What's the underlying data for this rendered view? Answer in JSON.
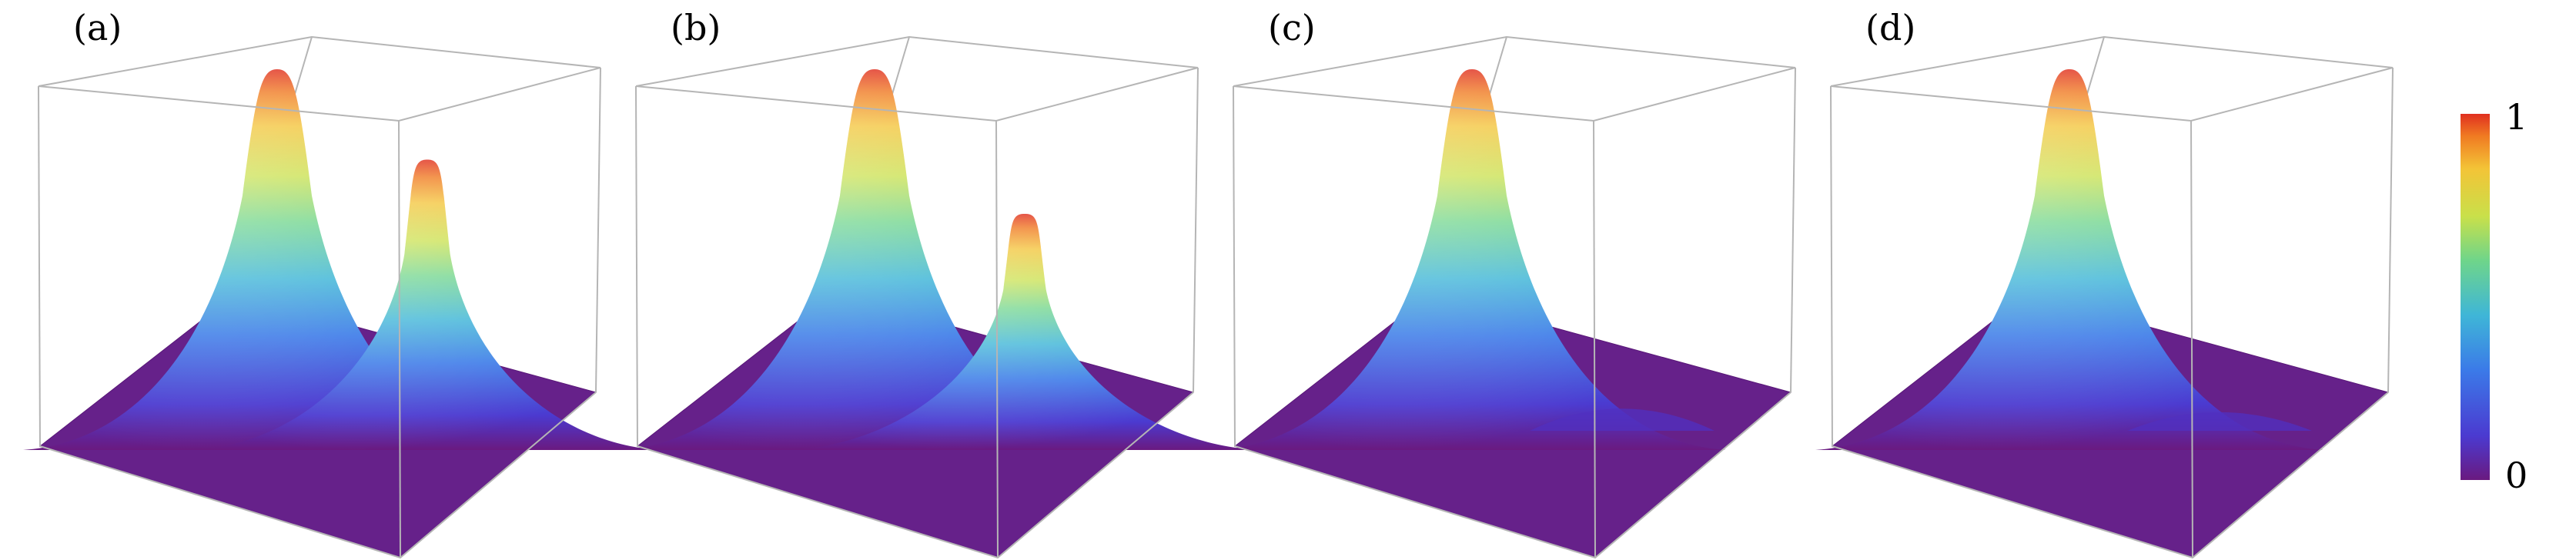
{
  "figure": {
    "colorbar": {
      "tick_max": "1",
      "tick_min": "0",
      "colors": [
        "#e03020",
        "#f07a22",
        "#f3c437",
        "#c9e04a",
        "#6fd58a",
        "#3fb6d7",
        "#3b7ae8",
        "#4b3ad0",
        "#63209e",
        "#6a1a80"
      ]
    }
  },
  "chart_data": [
    {
      "type": "surface",
      "panel_label": "(a)",
      "peaks": [
        {
          "height": 1.0
        },
        {
          "height": 0.75
        }
      ]
    },
    {
      "type": "surface",
      "panel_label": "(b)",
      "peaks": [
        {
          "height": 1.0
        },
        {
          "height": 0.6
        }
      ]
    },
    {
      "type": "surface",
      "panel_label": "(c)",
      "peaks": [
        {
          "height": 1.0
        },
        {
          "height": 0.08
        }
      ]
    },
    {
      "type": "surface",
      "panel_label": "(d)",
      "peaks": [
        {
          "height": 1.0
        },
        {
          "height": 0.06
        }
      ]
    }
  ]
}
